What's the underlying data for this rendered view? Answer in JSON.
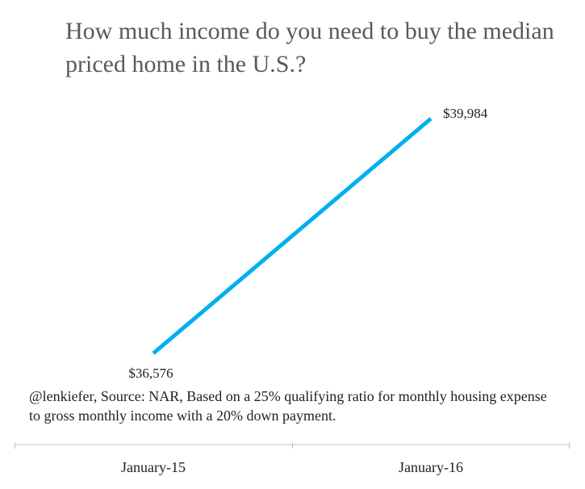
{
  "chart_data": {
    "type": "line",
    "title": "How much income do you need to buy the median priced home in the U.S.?",
    "categories": [
      "January-15",
      "January-16"
    ],
    "series": [
      {
        "values": [
          36576,
          39984
        ],
        "labels": [
          "$36,576",
          "$39,984"
        ]
      }
    ],
    "ylim": [
      36200,
      40300
    ],
    "colors": {
      "line": "#00b0f0",
      "axis": "#bfbfbf"
    },
    "note": "@lenkiefer, Source: NAR, Based on a 25% qualifying ratio for monthly housing expense to gross monthly income with a 20% down payment.",
    "grid": false,
    "legend": "none"
  }
}
